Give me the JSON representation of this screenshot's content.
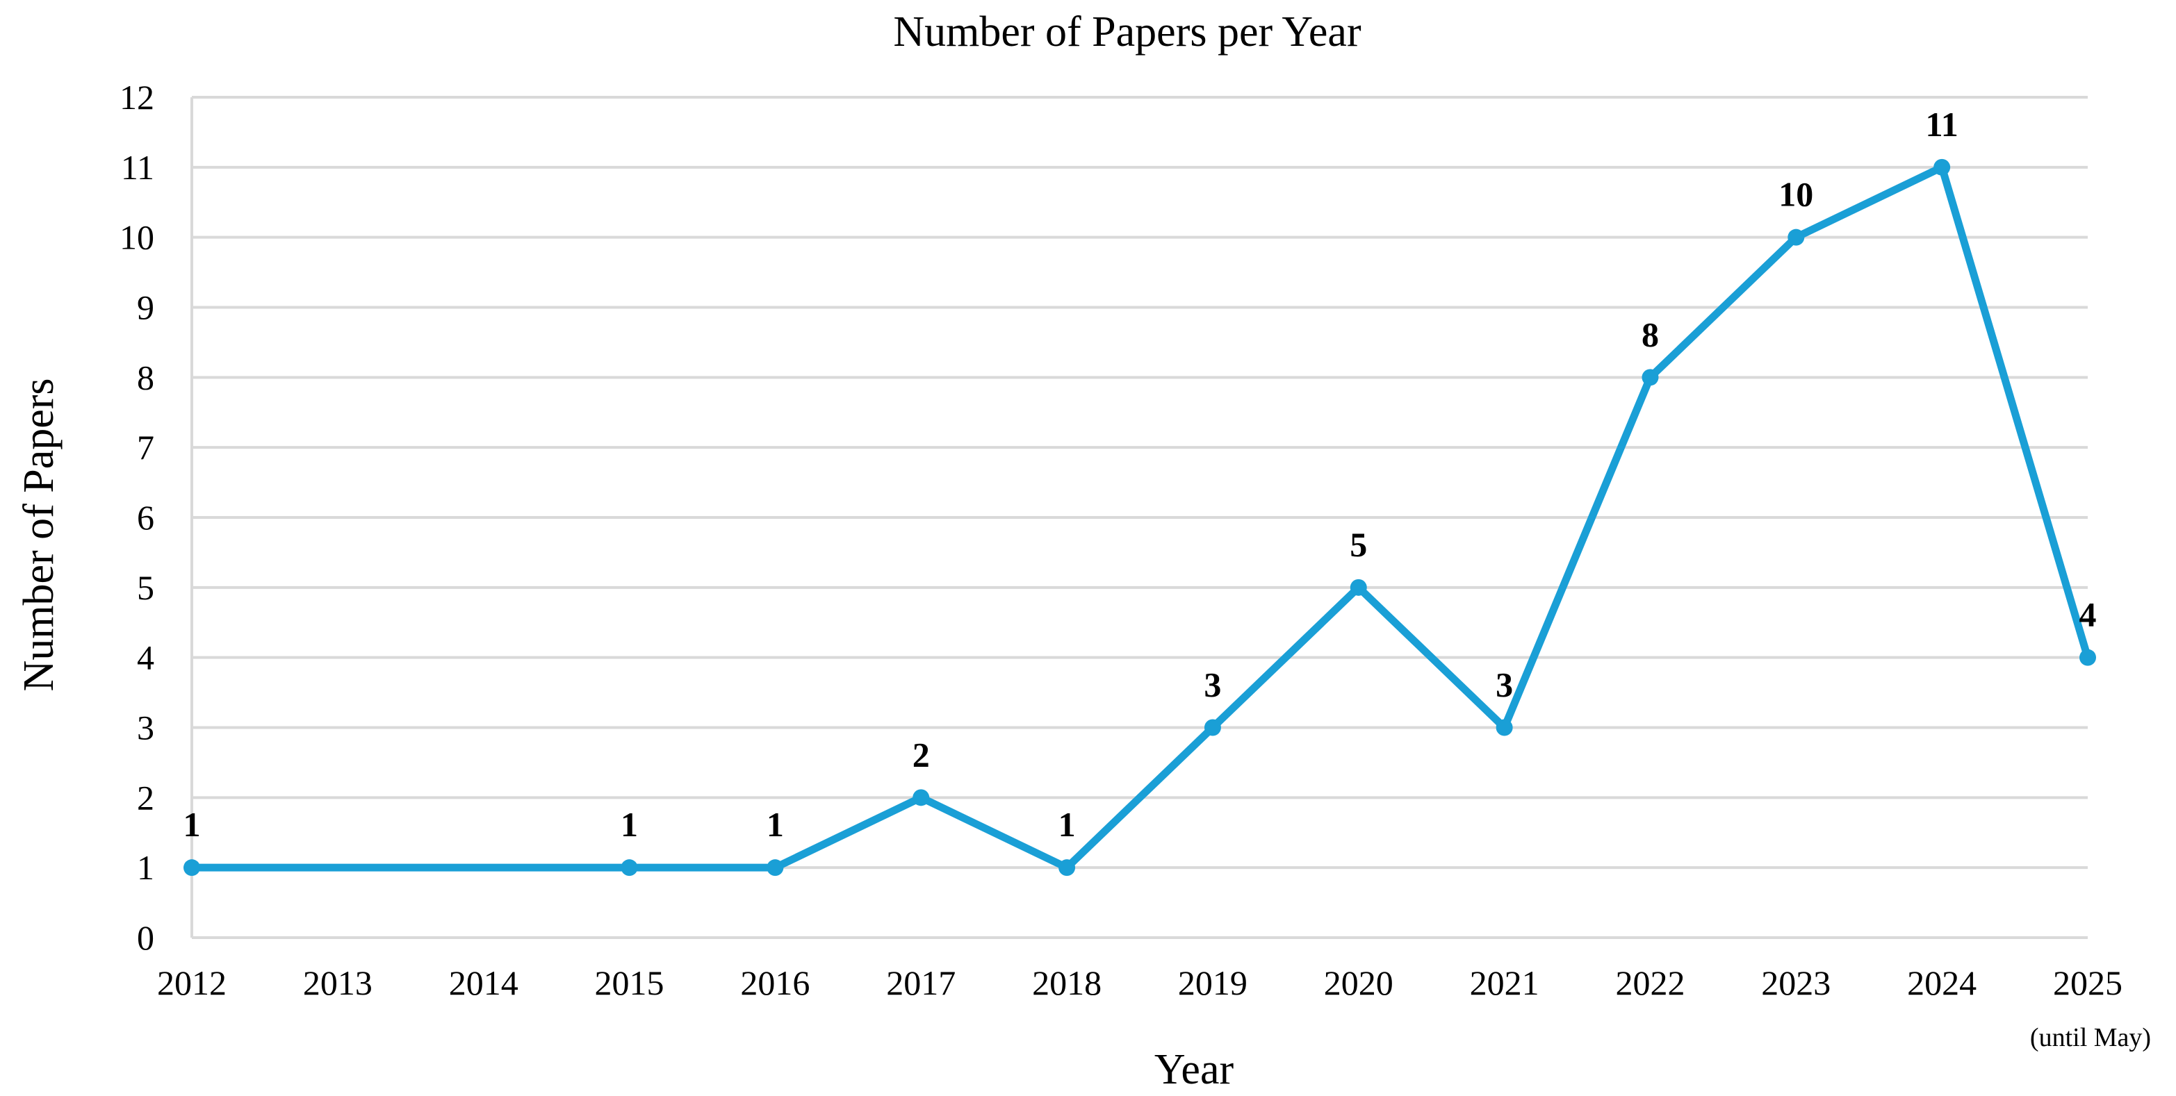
{
  "chart_data": {
    "type": "line",
    "title": "Number of Papers per Year",
    "xlabel": "Year",
    "ylabel": "Number of Papers",
    "categories": [
      "2012",
      "2013",
      "2014",
      "2015",
      "2016",
      "2017",
      "2018",
      "2019",
      "2020",
      "2021",
      "2022",
      "2023",
      "2024",
      "2025"
    ],
    "category_notes": {
      "2025": "(until May)"
    },
    "series": [
      {
        "points": [
          {
            "x": "2012",
            "y": 1
          },
          {
            "x": "2015",
            "y": 1
          },
          {
            "x": "2016",
            "y": 1
          },
          {
            "x": "2017",
            "y": 2
          },
          {
            "x": "2018",
            "y": 1
          },
          {
            "x": "2019",
            "y": 3
          },
          {
            "x": "2020",
            "y": 5
          },
          {
            "x": "2021",
            "y": 3
          },
          {
            "x": "2022",
            "y": 8
          },
          {
            "x": "2023",
            "y": 10
          },
          {
            "x": "2024",
            "y": 11
          },
          {
            "x": "2025",
            "y": 4
          }
        ],
        "color": "#1a9fd6"
      }
    ],
    "ylim": [
      0,
      12
    ],
    "yticks": [
      0,
      1,
      2,
      3,
      4,
      5,
      6,
      7,
      8,
      9,
      10,
      11,
      12
    ],
    "grid": true,
    "legend": "none",
    "data_labels": true
  }
}
